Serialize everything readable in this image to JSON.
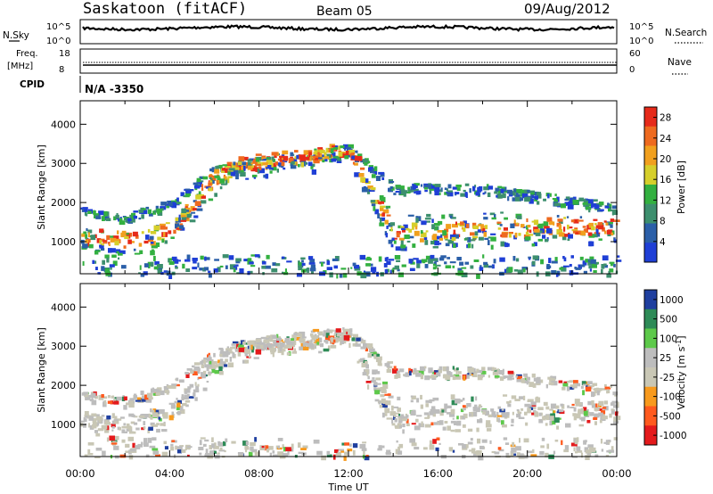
{
  "header": {
    "station": "Saskatoon (fitACF)",
    "beam": "Beam 05",
    "date": "09/Aug/2012"
  },
  "nsky_panel": {
    "left_label": "N.Sky",
    "right_label": "N.Search",
    "left_ticks": [
      "10^5",
      "10^0"
    ],
    "right_ticks": [
      "10^5",
      "10^0"
    ]
  },
  "freq_panel": {
    "left_label_top": "Freq.",
    "left_label_unit": "[MHz]",
    "right_label": "Nave",
    "left_ticks": [
      "18",
      "8"
    ],
    "right_ticks": [
      "60",
      "0"
    ]
  },
  "cpid": {
    "label": "CPID",
    "value": "N/A -3350"
  },
  "colors": {
    "power_scale": [
      "#1f3fd6",
      "#2b5fa8",
      "#3d8f6e",
      "#33b040",
      "#d6cf2b",
      "#f1a01e",
      "#ee6a1f",
      "#e62a1a"
    ],
    "velocity_scale": [
      "#e41a1c",
      "#ff5a1e",
      "#f89a1d",
      "#c9c7b5",
      "#bdbdbd",
      "#5dc94a",
      "#2e8b57",
      "#1f3f9f"
    ]
  },
  "chart_data": [
    {
      "type": "heatmap",
      "name": "power",
      "ylabel": "Slant Range [km]",
      "ylim": [
        180,
        4600
      ],
      "yticks": [
        "1000",
        "2000",
        "3000",
        "4000"
      ],
      "xlim": [
        0,
        24
      ],
      "colorbar_label": "Power [dB]",
      "colorbar_ticks": [
        "4",
        "8",
        "12",
        "16",
        "20",
        "24",
        "28"
      ],
      "colorbar_range": [
        0,
        30
      ],
      "scatter_edges": [
        {
          "t": 0,
          "lower": 1000,
          "upper": 1900
        },
        {
          "t": 2,
          "lower": 800,
          "upper": 1750
        },
        {
          "t": 4,
          "lower": 1100,
          "upper": 2100
        },
        {
          "t": 5.8,
          "lower": 2300,
          "upper": 2900
        },
        {
          "t": 7,
          "lower": 2800,
          "upper": 3200
        },
        {
          "t": 10,
          "lower": 3000,
          "upper": 3400
        },
        {
          "t": 12,
          "lower": 3200,
          "upper": 3500
        },
        {
          "t": 13,
          "lower": 2000,
          "upper": 3000
        },
        {
          "t": 14,
          "lower": 1000,
          "upper": 2500
        },
        {
          "t": 18,
          "lower": 1100,
          "upper": 2500
        },
        {
          "t": 24,
          "lower": 1200,
          "upper": 2000
        }
      ]
    },
    {
      "type": "heatmap",
      "name": "velocity",
      "ylabel": "Slant Range [km]",
      "xlabel": "Time UT",
      "ylim": [
        180,
        4600
      ],
      "yticks": [
        "1000",
        "2000",
        "3000",
        "4000"
      ],
      "xlim": [
        0,
        24
      ],
      "xticks": [
        "00:00",
        "04:00",
        "08:00",
        "12:00",
        "16:00",
        "20:00",
        "00:00"
      ],
      "colorbar_label": "Velocity [m s",
      "colorbar_label_sup": "-1",
      "colorbar_label_end": "]",
      "colorbar_ticks": [
        "1000",
        "500",
        "100",
        "25",
        "-25",
        "-100",
        "-500",
        "-1000"
      ]
    }
  ]
}
